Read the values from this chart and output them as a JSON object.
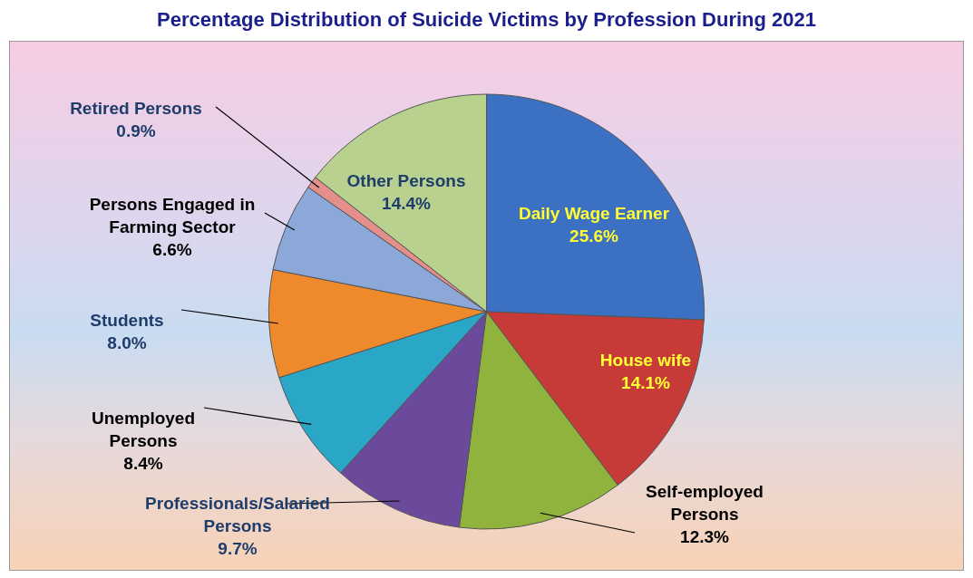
{
  "chart_data": {
    "type": "pie",
    "title": "Percentage Distribution of Suicide Victims by Profession During 2021",
    "categories": [
      "Daily Wage Earner",
      "House wife",
      "Self-employed Persons",
      "Professionals/Salaried Persons",
      "Unemployed Persons",
      "Students",
      "Persons Engaged in Farming Sector",
      "Retired Persons",
      "Other Persons"
    ],
    "values": [
      25.6,
      14.1,
      12.3,
      9.7,
      8.4,
      8.0,
      6.6,
      0.9,
      14.4
    ],
    "colors": [
      "#3b70c2",
      "#c63b37",
      "#8fb33c",
      "#6b4a9c",
      "#2aa6c6",
      "#ef8a2c",
      "#8ca8d8",
      "#e58f8c",
      "#b9d18f"
    ],
    "value_labels": [
      "25.6%",
      "14.1%",
      "12.3%",
      "9.7%",
      "8.4%",
      "8.0%",
      "6.6%",
      "0.9%",
      "14.4%"
    ]
  }
}
